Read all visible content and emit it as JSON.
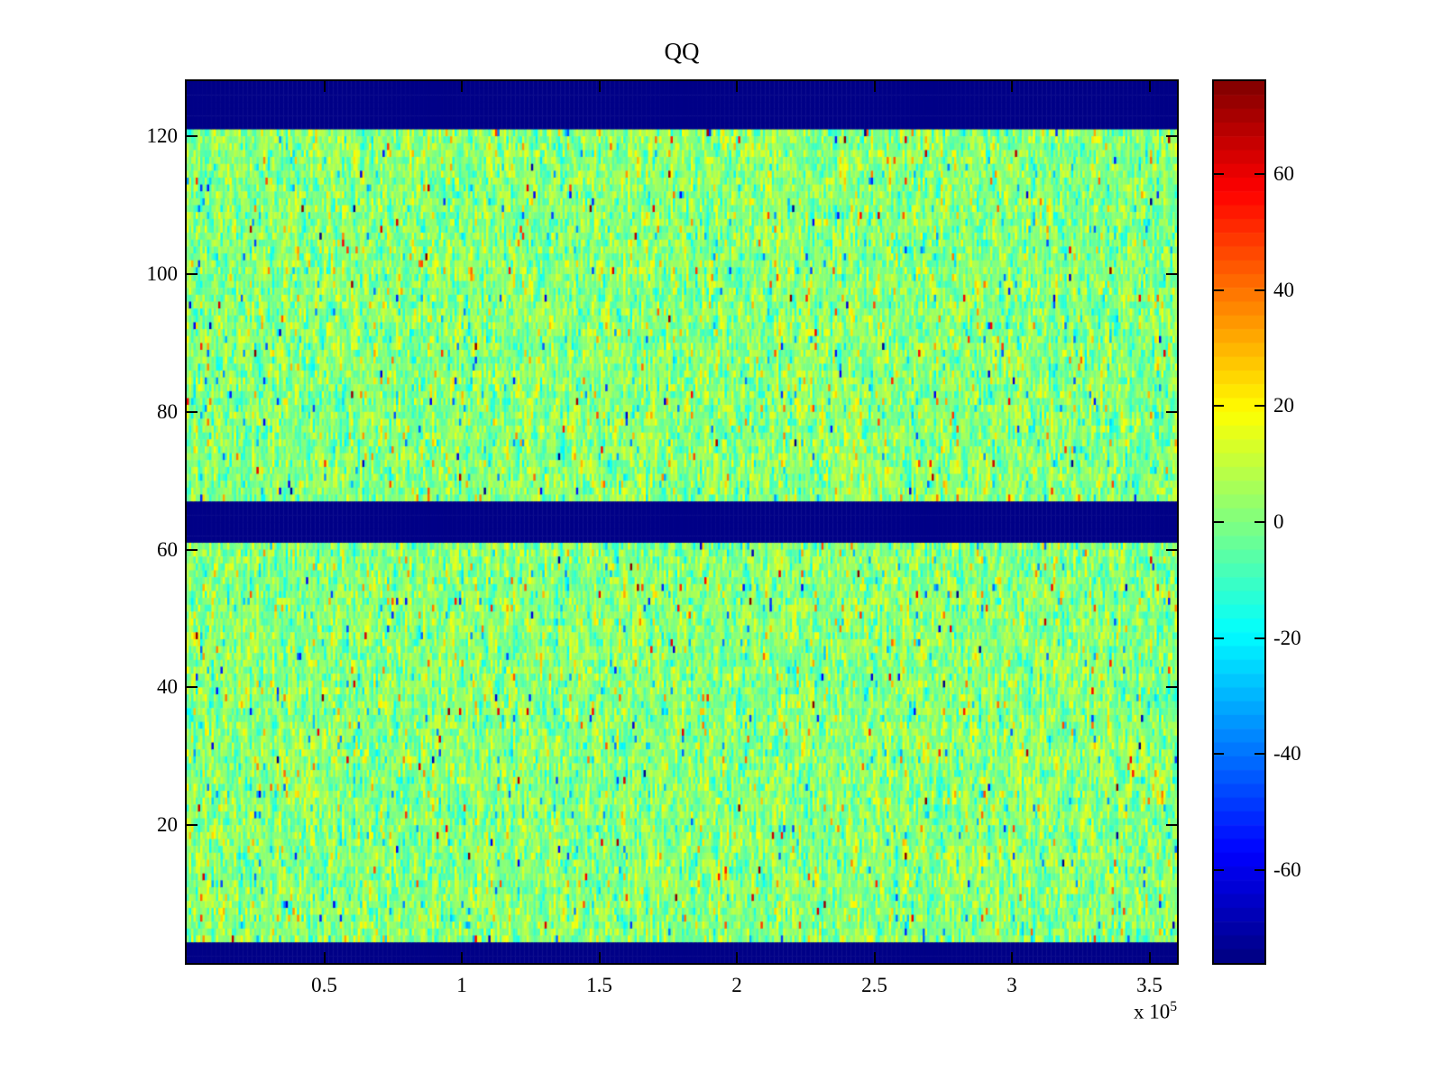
{
  "figure": {
    "background_color": "#ffffff",
    "axis_color": "#000000",
    "text_color": "#000000"
  },
  "chart_data": {
    "type": "heatmap",
    "title": "QQ",
    "xlabel": "",
    "ylabel": "",
    "x_range": [
      0,
      360000
    ],
    "x_tick_values": [
      50000,
      100000,
      150000,
      200000,
      250000,
      300000,
      350000
    ],
    "x_tick_labels": [
      "0.5",
      "1",
      "1.5",
      "2",
      "2.5",
      "3",
      "3.5"
    ],
    "x_exponent_label": {
      "prefix": "x 10",
      "exponent": "5"
    },
    "y_range": [
      0,
      128
    ],
    "y_tick_values": [
      20,
      40,
      60,
      80,
      100,
      120
    ],
    "y_tick_labels": [
      "20",
      "40",
      "60",
      "80",
      "100",
      "120"
    ],
    "rows": 128,
    "cols": 440,
    "colormap": "jet",
    "colormap_levels": 64,
    "color_range": [
      -76,
      76
    ],
    "colorbar_tick_values": [
      -60,
      -40,
      -20,
      0,
      20,
      40,
      60
    ],
    "colorbar_tick_labels": [
      "-60",
      "-40",
      "-20",
      "0",
      "20",
      "40",
      "60"
    ],
    "solid_low_bands_rows": [
      [
        1,
        3
      ],
      [
        62,
        67
      ],
      [
        122,
        128
      ]
    ],
    "solid_band_value": -76,
    "band_color_hint": "#000090",
    "noise": {
      "mean": 1,
      "std": 8.5,
      "vertical_correlation": 0.35,
      "outlier_fraction": 0.05,
      "outlier_std": 30,
      "seed": 7
    },
    "grid": false,
    "legend": null,
    "colorbar_position": "right"
  }
}
